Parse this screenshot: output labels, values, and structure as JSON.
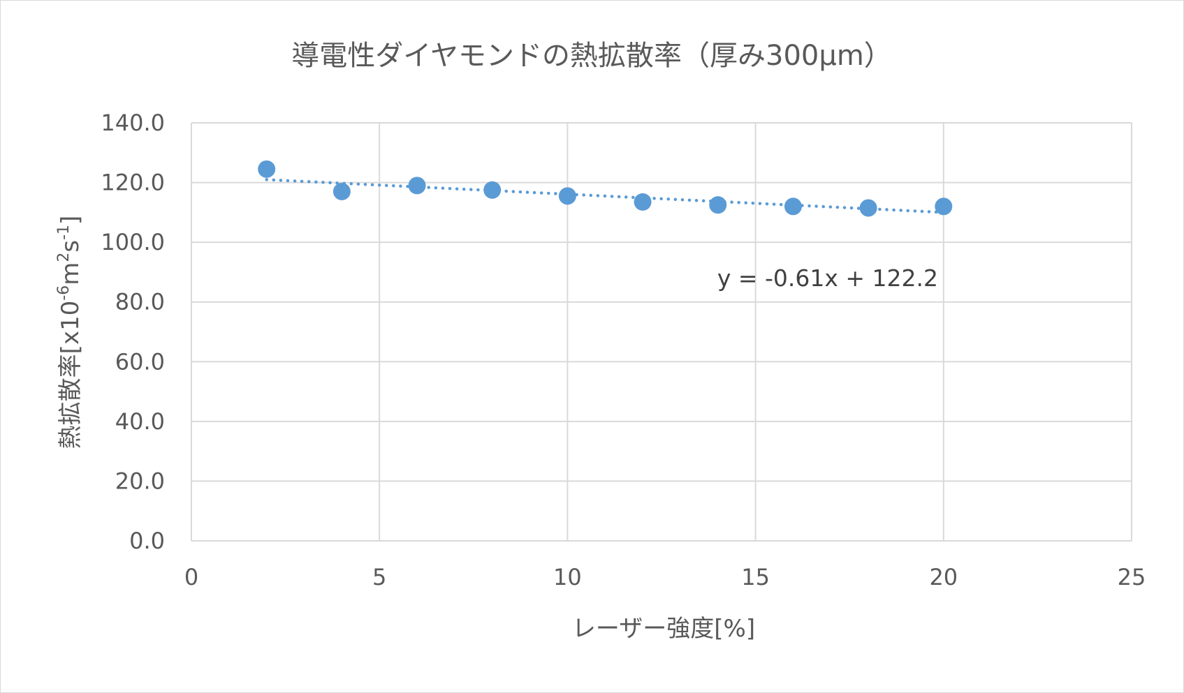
{
  "chart_data": {
    "type": "scatter",
    "title": "導電性ダイヤモンドの熱拡散率（厚み300µm）",
    "xlabel": "レーザー強度[%]",
    "ylabel": {
      "main": "熱拡散率[x10",
      "exp1": "-6",
      "mid": "m",
      "exp2": "2",
      "mid2": "s",
      "exp3": "-1",
      "end": "]"
    },
    "xlim": [
      0,
      25
    ],
    "ylim": [
      0,
      140
    ],
    "x_ticks": [
      0,
      5,
      10,
      15,
      20,
      25
    ],
    "y_ticks": [
      0,
      20,
      40,
      60,
      80,
      100,
      120,
      140
    ],
    "x_tick_labels": [
      "0",
      "5",
      "10",
      "15",
      "20",
      "25"
    ],
    "y_tick_labels": [
      "0.0",
      "20.0",
      "40.0",
      "60.0",
      "80.0",
      "100.0",
      "120.0",
      "140.0"
    ],
    "grid": true,
    "series": [
      {
        "x": [
          2,
          4,
          6,
          8,
          10,
          12,
          14,
          16,
          18,
          20
        ],
        "y": [
          124.5,
          117.0,
          119.0,
          117.5,
          115.5,
          113.5,
          112.5,
          112.0,
          111.5,
          112.0
        ],
        "color": "#5b9bd5"
      }
    ],
    "trendline": {
      "slope": -0.61,
      "intercept": 122.2,
      "x_range": [
        2,
        20
      ],
      "style": "dotted",
      "color": "#5b9bd5",
      "equation_label": "y = -0.61x + 122.2"
    }
  }
}
